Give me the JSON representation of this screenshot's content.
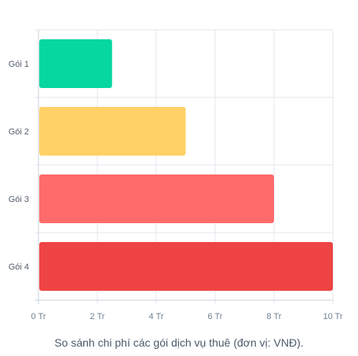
{
  "chart_data": {
    "type": "bar",
    "orientation": "horizontal",
    "categories": [
      "Gói 1",
      "Gói 2",
      "Gói 3",
      "Gói 4"
    ],
    "values": [
      2.5,
      5,
      8,
      10
    ],
    "colors": [
      "#06d6a0",
      "#ffd166",
      "#ff6b6b",
      "#ef4444"
    ],
    "xlim": [
      0,
      10
    ],
    "x_ticks": [
      0,
      2,
      4,
      6,
      8,
      10
    ],
    "x_tick_labels": [
      "0 Tr",
      "2 Tr",
      "4 Tr",
      "6 Tr",
      "8 Tr",
      "10 Tr"
    ],
    "grid": true,
    "caption": "So sánh chi phí các gói dịch vụ thuê (đơn vị: VNĐ)."
  }
}
